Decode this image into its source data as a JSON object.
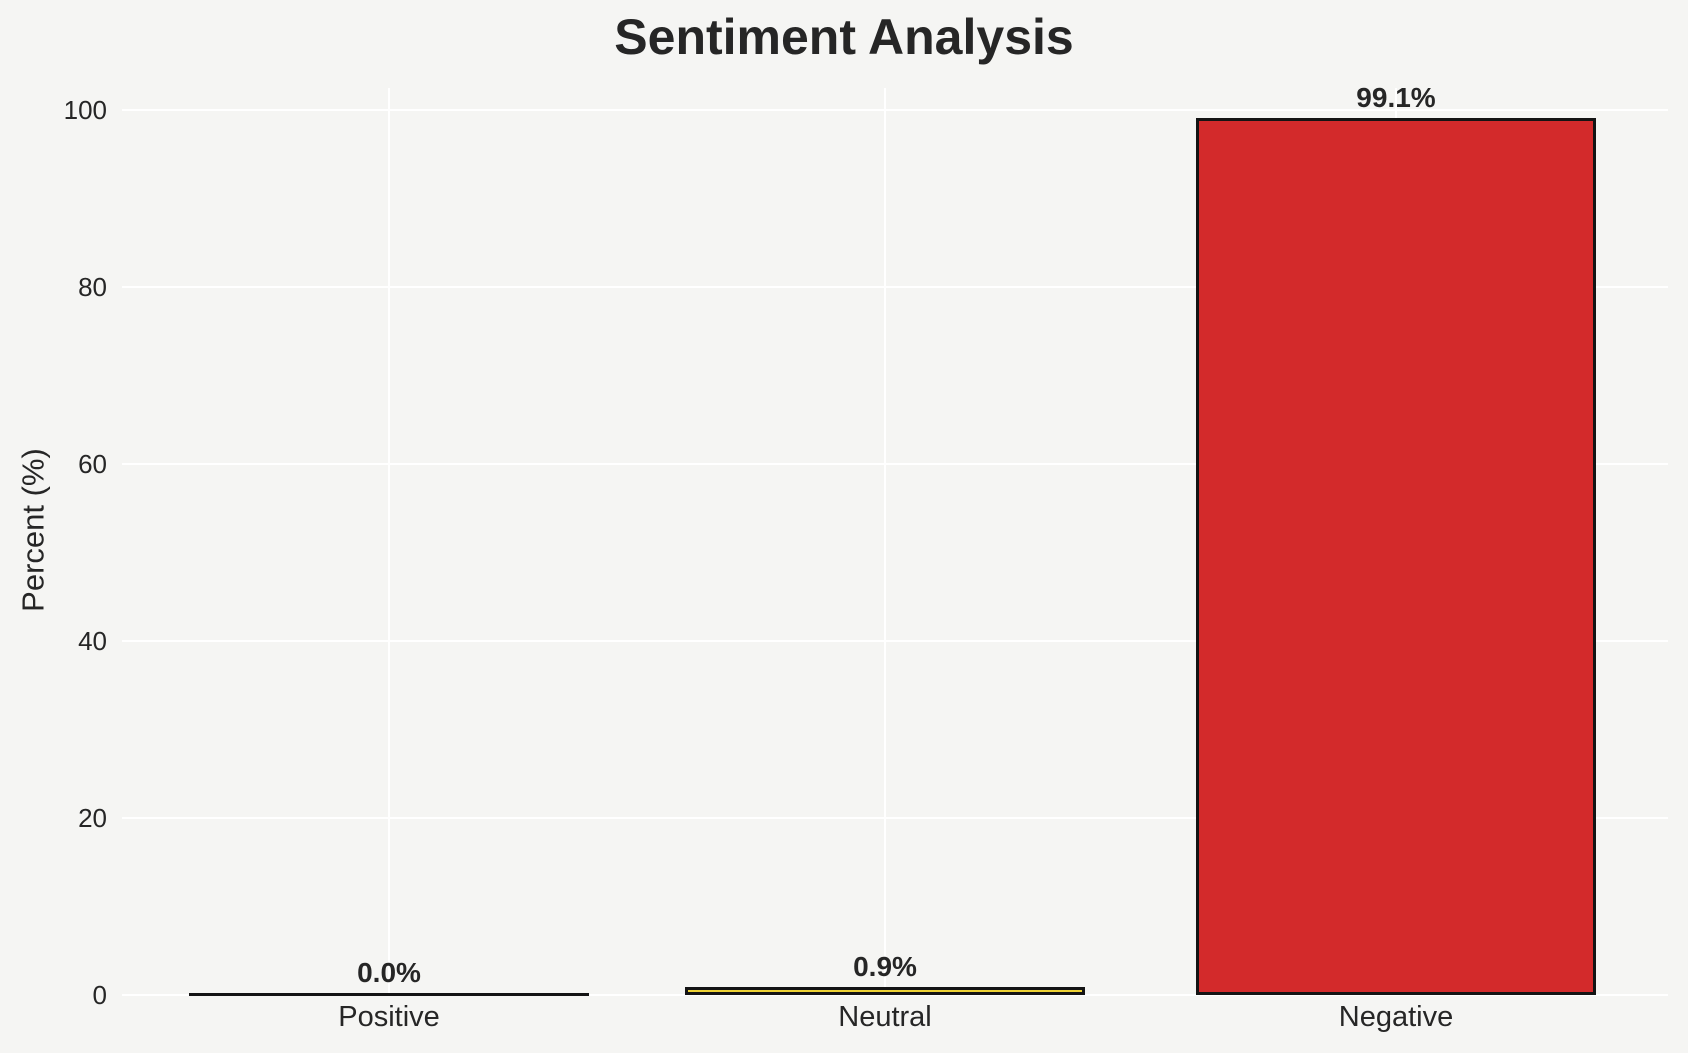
{
  "chart_data": {
    "type": "bar",
    "title": "Sentiment Analysis",
    "ylabel": "Percent (%)",
    "xlabel": "",
    "categories": [
      "Positive",
      "Neutral",
      "Negative"
    ],
    "values": [
      0.0,
      0.9,
      99.1
    ],
    "value_labels": [
      "0.0%",
      "0.9%",
      "99.1%"
    ],
    "bar_colors": [
      null,
      "#eed234",
      "#d32a2b"
    ],
    "bar_edge_color": "#141414",
    "yticks": [
      0,
      20,
      40,
      60,
      80,
      100
    ],
    "ytick_labels": [
      "0",
      "20",
      "40",
      "60",
      "80",
      "100"
    ],
    "ylim": [
      0,
      103
    ],
    "grid": true,
    "gridline_color": "#ffffff",
    "background_color": "#f5f5f3",
    "text_color": "#262626",
    "legend": "none"
  }
}
